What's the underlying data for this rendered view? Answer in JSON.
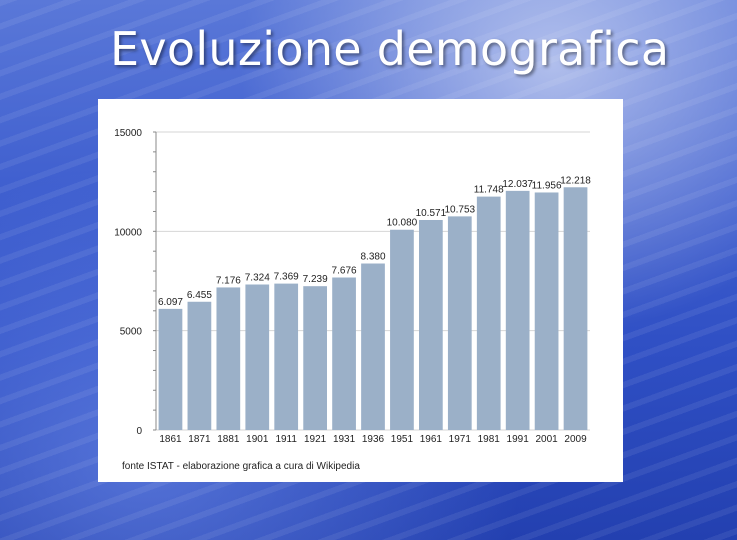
{
  "slide": {
    "title": "Evoluzione demografica"
  },
  "chart_data": {
    "type": "bar",
    "categories": [
      "1861",
      "1871",
      "1881",
      "1901",
      "1911",
      "1921",
      "1931",
      "1936",
      "1951",
      "1961",
      "1971",
      "1981",
      "1991",
      "2001",
      "2009"
    ],
    "values": [
      6097,
      6455,
      7176,
      7324,
      7369,
      7239,
      7676,
      8380,
      10080,
      10571,
      10753,
      11748,
      12037,
      11956,
      12218
    ],
    "value_labels": [
      "6.097",
      "6.455",
      "7.176",
      "7.324",
      "7.369",
      "7.239",
      "7.676",
      "8.380",
      "10.080",
      "10.571",
      "10.753",
      "11.748",
      "12.037",
      "11.956",
      "12.218"
    ],
    "ylim": [
      0,
      15000
    ],
    "yticks": [
      0,
      5000,
      10000,
      15000
    ],
    "ytick_labels": [
      "0",
      "5000",
      "10000",
      "15000"
    ],
    "grid": true,
    "bar_color": "#9bb0c8",
    "source_note": "fonte ISTAT - elaborazione grafica a cura di Wikipedia"
  }
}
